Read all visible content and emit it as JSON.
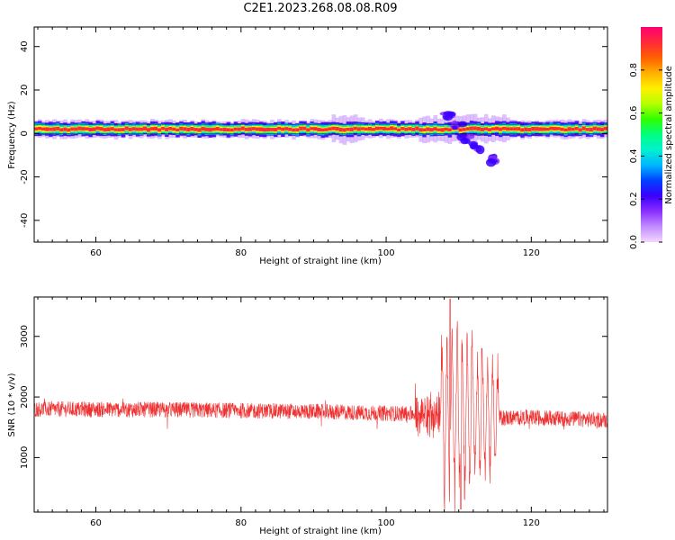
{
  "figure": {
    "title": "C2E1.2023.268.08.08.R09"
  },
  "chart_data": [
    {
      "type": "heatmap",
      "xlabel": "Height of straight line (km)",
      "ylabel": "Frequency (Hz)",
      "xlim": [
        51.5,
        130.5
      ],
      "ylim": [
        -50,
        49
      ],
      "xticks": [
        60,
        80,
        100,
        120
      ],
      "yticks": [
        -40,
        -20,
        0,
        20,
        40
      ],
      "colorbar": {
        "label": "Normalized spectral amplitude",
        "range": [
          0,
          1
        ],
        "ticks": [
          "0.0",
          "0.2",
          "0.4",
          "0.6",
          "0.8"
        ],
        "colormap": [
          "#f3d7ff",
          "#c38dff",
          "#8a2fff",
          "#3a00ff",
          "#0040ff",
          "#00b5ff",
          "#00f0d0",
          "#00ff80",
          "#30ff00",
          "#b5ff00",
          "#fff000",
          "#ffb000",
          "#ff6000",
          "#ff2a3a",
          "#ff0070"
        ]
      },
      "band": {
        "center_hz": 2,
        "halfwidth_hz": 4
      },
      "disturbance": [
        {
          "x": 108.5,
          "y": 8
        },
        {
          "x": 110,
          "y": 4
        },
        {
          "x": 111,
          "y": -2
        },
        {
          "x": 112.5,
          "y": -6
        },
        {
          "x": 114.5,
          "y": -12
        }
      ]
    },
    {
      "type": "line",
      "xlabel": "Height of straight line (km)",
      "ylabel": "SNR (10 * v/v)",
      "xlim": [
        51.5,
        130.5
      ],
      "ylim": [
        100,
        3650
      ],
      "xticks": [
        60,
        80,
        100,
        120
      ],
      "yticks": [
        1000,
        2000,
        3000
      ],
      "color": "#ef3030",
      "baseline": [
        {
          "x": 51.5,
          "y": 1800
        },
        {
          "x": 70,
          "y": 1790
        },
        {
          "x": 90,
          "y": 1760
        },
        {
          "x": 100,
          "y": 1730
        },
        {
          "x": 105,
          "y": 1720
        },
        {
          "x": 112,
          "y": 1650
        },
        {
          "x": 120,
          "y": 1660
        },
        {
          "x": 130.5,
          "y": 1620
        }
      ],
      "peaks": [
        {
          "x": 108.8,
          "y": 3620
        },
        {
          "x": 110.3,
          "y": 150
        },
        {
          "x": 111.8,
          "y": 2830
        },
        {
          "x": 113.2,
          "y": 2800
        }
      ]
    }
  ]
}
